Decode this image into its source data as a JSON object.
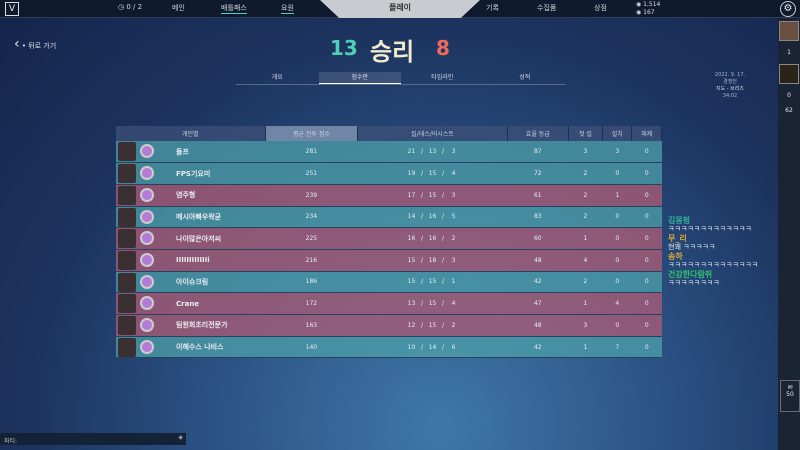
{
  "topbar": {
    "missions": "0 / 2",
    "nav": [
      "메인",
      "배틀패스",
      "요원"
    ],
    "play": "플레이",
    "nav_right": [
      "기록",
      "수집품",
      "상점"
    ],
    "vp": "1,514",
    "rp": "167"
  },
  "back": "뒤로 가기",
  "result": {
    "ally_score": "13",
    "label": "승리",
    "enemy_score": "8"
  },
  "tabs": [
    "개요",
    "점수판",
    "타임라인",
    "성적"
  ],
  "meta": {
    "date": "2022. 9. 17.",
    "mode": "경쟁전",
    "map": "지도 - 브리즈",
    "duration": "34:02"
  },
  "columns": [
    "개인별",
    "평균 전투 점수",
    "킬/데스/어시스트",
    "효율 등급",
    "첫 킬",
    "설치",
    "해제"
  ],
  "players": [
    {
      "name": "돌프",
      "acs": "281",
      "k": "21",
      "d": "13",
      "a": "3",
      "eff": "87",
      "fk": "3",
      "plant": "3",
      "defuse": "0",
      "team": "w"
    },
    {
      "name": "FPS기요미",
      "acs": "251",
      "k": "19",
      "d": "15",
      "a": "4",
      "eff": "72",
      "fk": "2",
      "plant": "0",
      "defuse": "0",
      "team": "w"
    },
    {
      "name": "염주형",
      "acs": "239",
      "k": "17",
      "d": "15",
      "a": "3",
      "eff": "61",
      "fk": "2",
      "plant": "1",
      "defuse": "0",
      "team": "l"
    },
    {
      "name": "메시아빠우왁굳",
      "acs": "234",
      "k": "14",
      "d": "16",
      "a": "5",
      "eff": "83",
      "fk": "2",
      "plant": "0",
      "defuse": "0",
      "team": "w"
    },
    {
      "name": "나이많은아저씨",
      "acs": "225",
      "k": "16",
      "d": "16",
      "a": "2",
      "eff": "60",
      "fk": "1",
      "plant": "0",
      "defuse": "0",
      "team": "l"
    },
    {
      "name": "IIIIIIIIIIIIi",
      "acs": "216",
      "k": "15",
      "d": "18",
      "a": "3",
      "eff": "48",
      "fk": "4",
      "plant": "0",
      "defuse": "0",
      "team": "l"
    },
    {
      "name": "아이슈크림",
      "acs": "186",
      "k": "15",
      "d": "15",
      "a": "1",
      "eff": "42",
      "fk": "2",
      "plant": "0",
      "defuse": "0",
      "team": "w"
    },
    {
      "name": "Crane",
      "acs": "172",
      "k": "13",
      "d": "15",
      "a": "4",
      "eff": "47",
      "fk": "1",
      "plant": "4",
      "defuse": "0",
      "team": "l"
    },
    {
      "name": "팀원회초리전문가",
      "acs": "163",
      "k": "12",
      "d": "15",
      "a": "2",
      "eff": "48",
      "fk": "3",
      "plant": "0",
      "defuse": "0",
      "team": "l"
    },
    {
      "name": "이헤수스 나비스",
      "acs": "140",
      "k": "10",
      "d": "14",
      "a": "6",
      "eff": "42",
      "fk": "1",
      "plant": "7",
      "defuse": "0",
      "team": "w"
    }
  ],
  "chat": [
    {
      "user": "김몽펑",
      "msg": "ㅋㅋㅋㅋㅋㅋㅋㅋㅋㅋㅋㅋㅋ",
      "color": "#2fb39a"
    },
    {
      "user": "무_리",
      "msg": "",
      "color": "#d9a83a"
    },
    {
      "user": "",
      "msg": "현꽤 ㅋㅋㅋㅋㅋ",
      "color": "#ffffff"
    },
    {
      "user": "송하",
      "msg": "ㅋㅋㅋㅋㅋㅋㅋㅋㅋㅋㅋㅋㅋㅋ",
      "color": "#d9a83a"
    },
    {
      "user": "건강한다람쥐",
      "msg": "ㅋㅋㅋㅋㅋㅋㅋㅋ",
      "color": "#2fc36a"
    }
  ],
  "social": {
    "count1": "1",
    "count2": "0",
    "count3": "62",
    "mail": "50"
  },
  "party": "파티:",
  "colors": {
    "win": "#4ea0aa",
    "loss": "#b05c76",
    "ally": "#4fd1b8",
    "enemy": "#f06a5a"
  }
}
